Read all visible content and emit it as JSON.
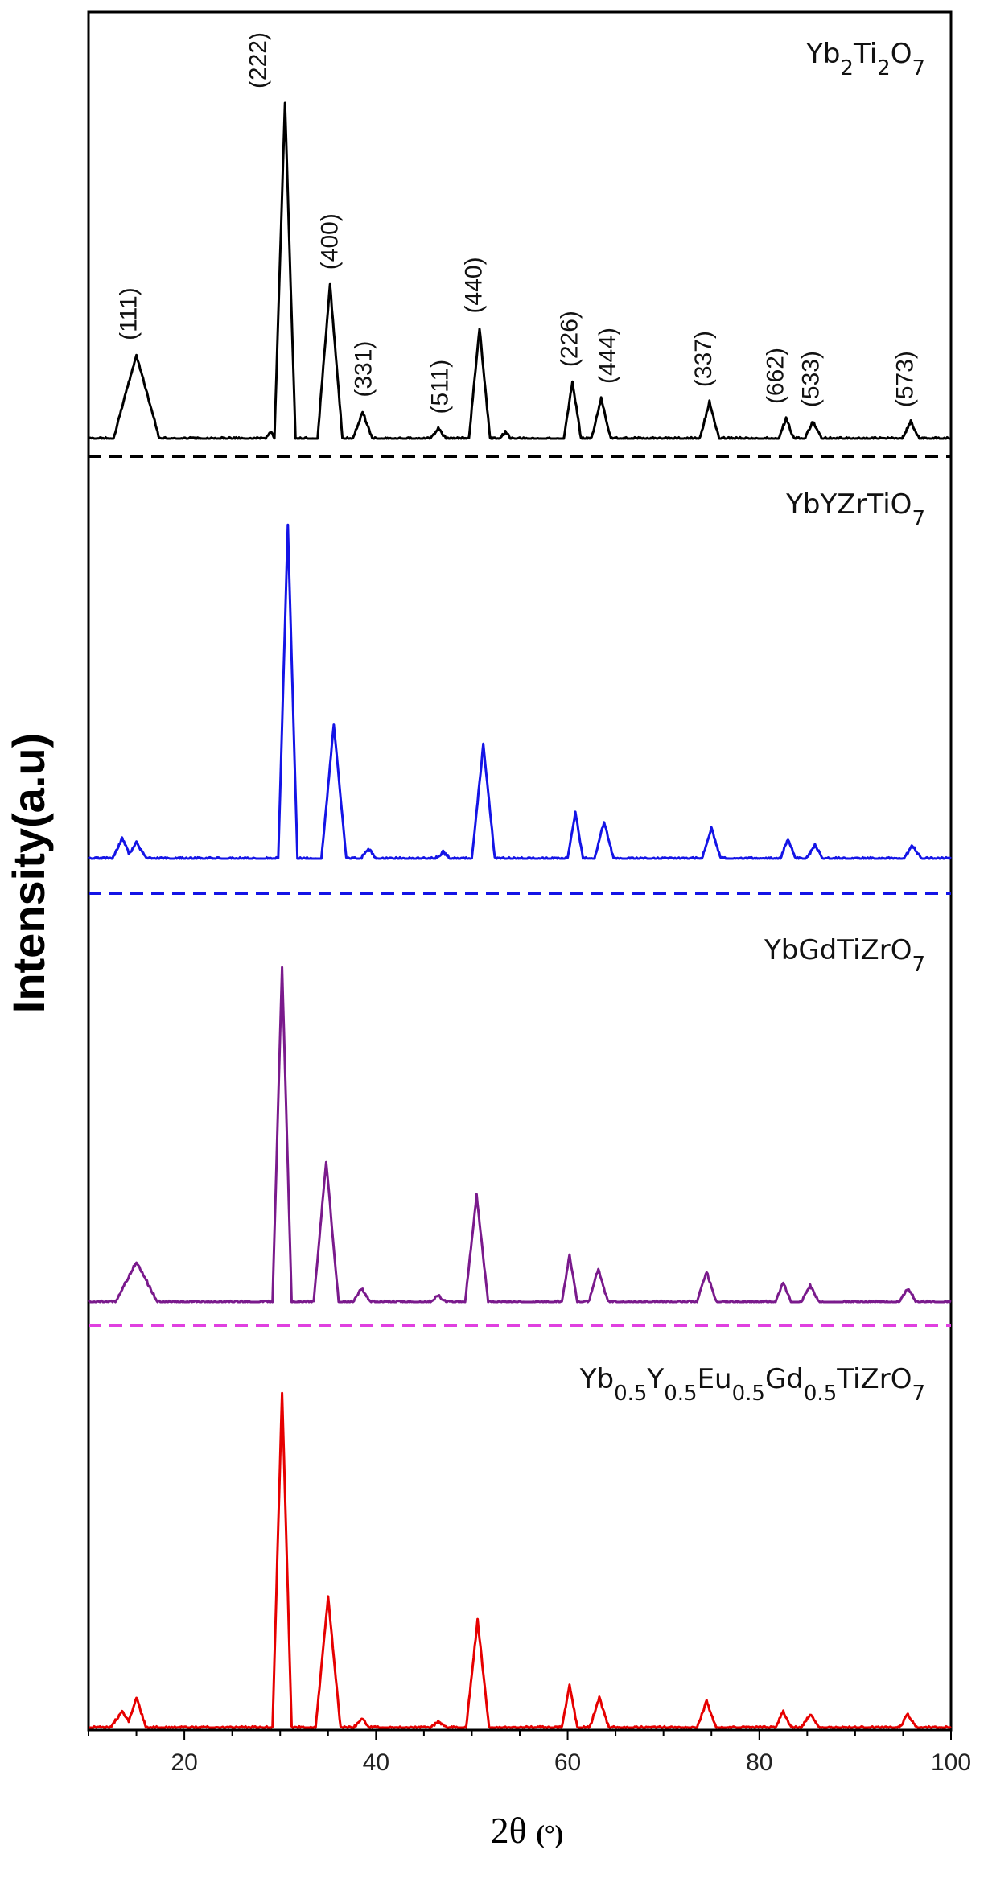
{
  "chart_data": {
    "type": "line",
    "xlabel": "2θ",
    "xlabel_unit": "(°)",
    "ylabel": "Intensity(a.u)",
    "xlim": [
      10,
      100
    ],
    "xticks": [
      20,
      40,
      60,
      80,
      100
    ],
    "grid": false,
    "legend": "none",
    "series": [
      {
        "name": "Yb2Ti2O7",
        "name_parts": [
          {
            "t": "Yb"
          },
          {
            "t": "2",
            "s": "sub"
          },
          {
            "t": "Ti"
          },
          {
            "t": "2",
            "s": "sub"
          },
          {
            "t": "O"
          },
          {
            "t": "7",
            "s": "sub"
          }
        ],
        "color": "#000000",
        "baseline_line_color": "#000000",
        "peak_max": 1,
        "peaks": [
          [
            15,
            0.25,
            2.4
          ],
          [
            29,
            0.02,
            0.5
          ],
          [
            30.5,
            1.0,
            1.1
          ],
          [
            35.2,
            0.46,
            1.3
          ],
          [
            38.6,
            0.08,
            1.0
          ],
          [
            46.5,
            0.03,
            0.8
          ],
          [
            50.8,
            0.33,
            1.1
          ],
          [
            53.5,
            0.02,
            0.6
          ],
          [
            60.5,
            0.17,
            0.9
          ],
          [
            63.5,
            0.12,
            1.0
          ],
          [
            74.8,
            0.11,
            1.0
          ],
          [
            82.8,
            0.06,
            0.8
          ],
          [
            85.6,
            0.05,
            0.9
          ],
          [
            95.8,
            0.05,
            0.9
          ]
        ],
        "annotations": [
          {
            "label": "(111)",
            "x": 15.0,
            "y": 0.25
          },
          {
            "label": "(222)",
            "x": 28.5,
            "y": 1.0
          },
          {
            "label": "(400)",
            "x": 36.0,
            "y": 0.46
          },
          {
            "label": "(331)",
            "x": 39.5,
            "y": 0.08
          },
          {
            "label": "(511)",
            "x": 47.5,
            "y": 0.03
          },
          {
            "label": "(440)",
            "x": 51.0,
            "y": 0.33
          },
          {
            "label": "(226)",
            "x": 61.0,
            "y": 0.17
          },
          {
            "label": "(444)",
            "x": 65.0,
            "y": 0.12
          },
          {
            "label": "(337)",
            "x": 75.0,
            "y": 0.11
          },
          {
            "label": "(662)",
            "x": 82.5,
            "y": 0.06
          },
          {
            "label": "(533)",
            "x": 86.2,
            "y": 0.05
          },
          {
            "label": "(573)",
            "x": 96.0,
            "y": 0.05
          }
        ]
      },
      {
        "name": "YbYZrTiO7",
        "name_parts": [
          {
            "t": "YbYZrTiO"
          },
          {
            "t": "7",
            "s": "sub"
          }
        ],
        "color": "#1414e6",
        "baseline_line_color": "#1414e6",
        "peak_max": 1,
        "peaks": [
          [
            13.5,
            0.06,
            1.0
          ],
          [
            15.0,
            0.05,
            1.0
          ],
          [
            30.8,
            1.0,
            1.0
          ],
          [
            35.6,
            0.4,
            1.3
          ],
          [
            39.2,
            0.03,
            0.8
          ],
          [
            47.0,
            0.02,
            0.8
          ],
          [
            51.2,
            0.34,
            1.2
          ],
          [
            60.8,
            0.14,
            0.8
          ],
          [
            63.8,
            0.11,
            1.0
          ],
          [
            75.0,
            0.09,
            1.0
          ],
          [
            83.0,
            0.06,
            0.8
          ],
          [
            85.8,
            0.04,
            0.9
          ],
          [
            96.0,
            0.04,
            0.9
          ]
        ],
        "annotations": []
      },
      {
        "name": "YbGdTiZrO7",
        "name_parts": [
          {
            "t": "YbGdTiZrO"
          },
          {
            "t": "7",
            "s": "sub"
          }
        ],
        "color": "#7a1a8c",
        "baseline_line_color": "#e040e0",
        "peak_max": 1,
        "peaks": [
          [
            15.0,
            0.12,
            2.2
          ],
          [
            30.2,
            1.0,
            1.0
          ],
          [
            34.8,
            0.42,
            1.3
          ],
          [
            38.5,
            0.04,
            0.9
          ],
          [
            46.5,
            0.02,
            0.8
          ],
          [
            50.5,
            0.32,
            1.2
          ],
          [
            60.2,
            0.14,
            0.8
          ],
          [
            63.2,
            0.1,
            1.0
          ],
          [
            74.5,
            0.09,
            1.0
          ],
          [
            82.5,
            0.06,
            0.8
          ],
          [
            85.3,
            0.05,
            0.9
          ],
          [
            95.5,
            0.04,
            0.9
          ]
        ],
        "annotations": []
      },
      {
        "name": "Yb0.5Y0.5Eu0.5Gd0.5TiZrO7",
        "name_parts": [
          {
            "t": "Yb"
          },
          {
            "t": "0.5",
            "s": "sub"
          },
          {
            "t": "Y"
          },
          {
            "t": "0.5",
            "s": "sub"
          },
          {
            "t": "Eu"
          },
          {
            "t": "0.5",
            "s": "sub"
          },
          {
            "t": "Gd"
          },
          {
            "t": "0.5",
            "s": "sub"
          },
          {
            "t": "TiZrO"
          },
          {
            "t": "7",
            "s": "sub"
          }
        ],
        "color": "#e60000",
        "baseline_line_color": null,
        "peak_max": 1,
        "peaks": [
          [
            13.5,
            0.05,
            1.2
          ],
          [
            15.0,
            0.09,
            1.0
          ],
          [
            30.2,
            1.0,
            1.0
          ],
          [
            35.0,
            0.39,
            1.3
          ],
          [
            38.5,
            0.03,
            0.8
          ],
          [
            46.5,
            0.02,
            0.8
          ],
          [
            50.6,
            0.32,
            1.2
          ],
          [
            60.2,
            0.13,
            0.8
          ],
          [
            63.3,
            0.09,
            1.0
          ],
          [
            74.5,
            0.08,
            1.0
          ],
          [
            82.5,
            0.05,
            0.8
          ],
          [
            85.3,
            0.04,
            0.9
          ],
          [
            95.5,
            0.04,
            0.9
          ]
        ],
        "annotations": []
      }
    ]
  }
}
